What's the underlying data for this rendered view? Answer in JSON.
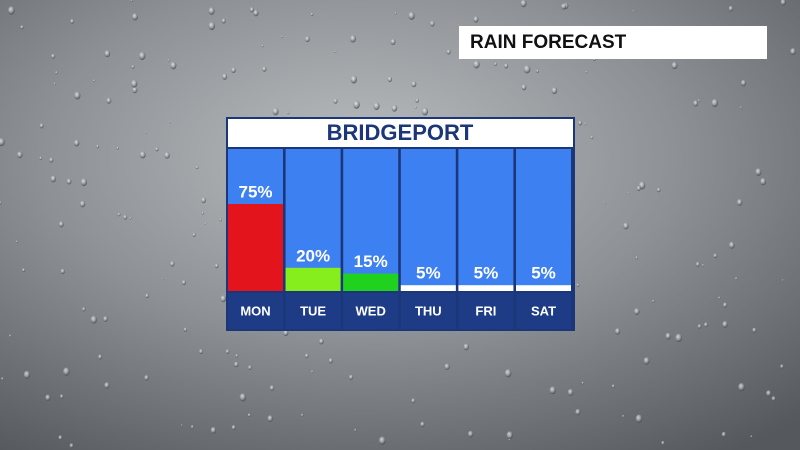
{
  "header": {
    "title": "RAIN FORECAST"
  },
  "chart_data": {
    "type": "bar",
    "title": "BRIDGEPORT",
    "categories": [
      "MON",
      "TUE",
      "WED",
      "THU",
      "FRI",
      "SAT"
    ],
    "values": [
      75,
      20,
      15,
      5,
      5,
      5
    ],
    "value_labels": [
      "75%",
      "20%",
      "15%",
      "5%",
      "5%",
      "5%"
    ],
    "colors": [
      "#e3141b",
      "#86ee1c",
      "#20d11e",
      "#ffffff",
      "#ffffff",
      "#ffffff"
    ]
  }
}
